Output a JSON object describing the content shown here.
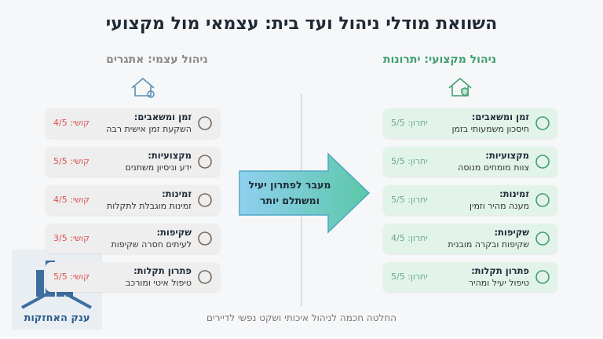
{
  "title": "השוואת מודלי ניהול ועד בית: עצמאי מול מקצועי",
  "professional": {
    "header": "ניהול מקצועי: יתרונות",
    "items": [
      {
        "label": "זמן ומשאבים:",
        "detail": "חיסכון משמעותי בזמן",
        "score": "יתרון: 5/5"
      },
      {
        "label": "מקצועיות:",
        "detail": "צוות מומחים מנוסה",
        "score": "יתרון: 5/5"
      },
      {
        "label": "זמינות:",
        "detail": "מענה מהיר וזמין",
        "score": "יתרון: 5/5"
      },
      {
        "label": "שקיפות:",
        "detail": "שקיפות ובקרה מובנית",
        "score": "יתרון: 4/5"
      },
      {
        "label": "פתרון תקלות:",
        "detail": "טיפול יעיל ומהיר",
        "score": "יתרון: 5/5"
      }
    ]
  },
  "self": {
    "header": "ניהול עצמי: אתגרים",
    "items": [
      {
        "label": "זמן ומשאבים:",
        "detail": "השקעת זמן אישית רבה",
        "score": "קושי: 4/5"
      },
      {
        "label": "מקצועיות:",
        "detail": "ידע וניסיון משתנים",
        "score": "קושי: 5/5"
      },
      {
        "label": "זמינות:",
        "detail": "זמינות מוגבלת לתקלות",
        "score": "קושי: 4/5"
      },
      {
        "label": "שקיפות:",
        "detail": "לעיתים חסרה שקיפות",
        "score": "קושי: 3/5"
      },
      {
        "label": "פתרון תקלות:",
        "detail": "טיפול איטי ומורכב",
        "score": "קושי: 5/5"
      }
    ]
  },
  "arrow": {
    "line1": "מעבר לפתרון יעיל",
    "line2": "ומשתלם יותר"
  },
  "footer": "החלטה חכמה לניהול איכותי ושקט נפשי לדיירים",
  "logo": "ענק האחזקות"
}
